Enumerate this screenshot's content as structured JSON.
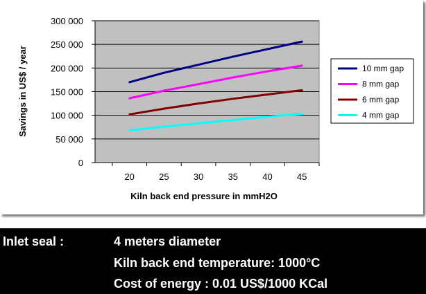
{
  "chart_data": {
    "type": "line",
    "xlabel": "Kiln back end pressure in mmH2O",
    "ylabel": "Savings in US$ / year",
    "x": [
      20,
      25,
      30,
      35,
      40,
      45
    ],
    "x_tick_labels": [
      "20",
      "25",
      "30",
      "35",
      "40",
      "45"
    ],
    "y_tick_labels": [
      "0",
      "50 000",
      "100 000",
      "150 000",
      "200 000",
      "250 000",
      "300 000"
    ],
    "y_ticks": [
      0,
      50000,
      100000,
      150000,
      200000,
      250000,
      300000
    ],
    "ylim": [
      0,
      300000
    ],
    "grid": "horizontal",
    "legend_position": "right",
    "plot_background": "#c0c0c0",
    "series": [
      {
        "name": "10 mm gap",
        "color": "#000080",
        "values": [
          170000,
          190000,
          207000,
          224000,
          240000,
          256000
        ]
      },
      {
        "name": "8 mm gap",
        "color": "#ff00ff",
        "values": [
          136000,
          152000,
          166000,
          180000,
          193000,
          205000
        ]
      },
      {
        "name": "6 mm gap",
        "color": "#800000",
        "values": [
          102000,
          114000,
          125000,
          135000,
          144000,
          153000
        ]
      },
      {
        "name": "4 mm gap",
        "color": "#00ffff",
        "values": [
          68000,
          76000,
          83000,
          90000,
          97000,
          103000
        ]
      }
    ]
  },
  "info": {
    "label": "Inlet seal :",
    "line1": "4 meters diameter",
    "line2": "Kiln back end  temperature: 1000°C",
    "line3": "Cost of energy : 0.01 US$/1000 KCal"
  }
}
